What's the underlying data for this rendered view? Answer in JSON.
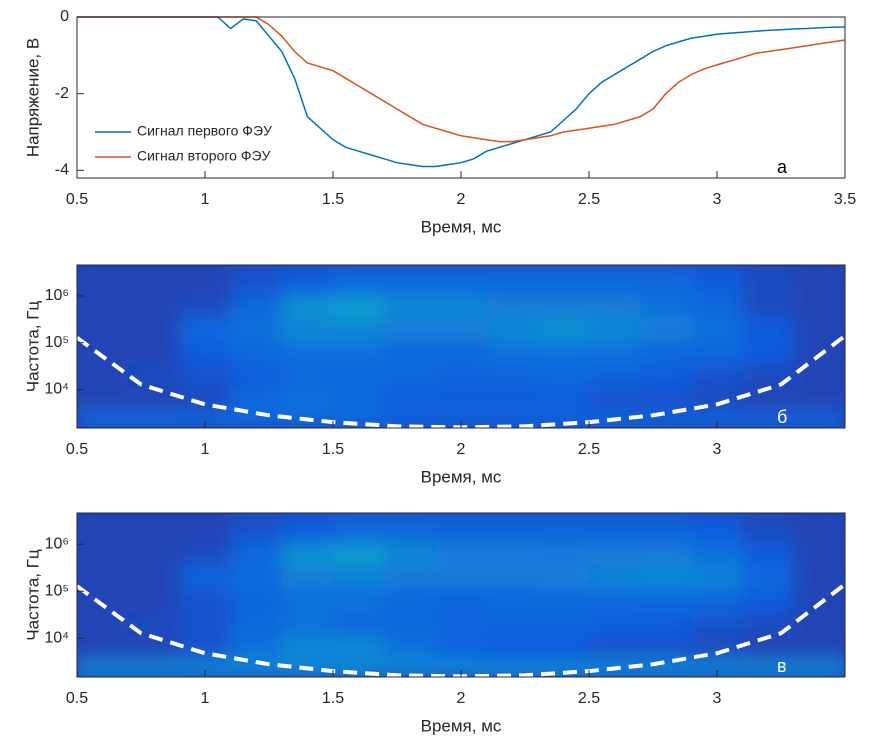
{
  "chart_data": [
    {
      "type": "line",
      "xlabel": "Время, мс",
      "ylabel": "Напряжение, В",
      "annotation": "а",
      "xlim": [
        0.5,
        3.5
      ],
      "xticks": [
        0.5,
        1,
        1.5,
        2,
        2.5,
        3,
        3.5
      ],
      "ylim": [
        -4.2,
        0
      ],
      "yticks": [
        -4,
        -2,
        0
      ],
      "legend": "lower left",
      "x": [
        0.5,
        0.55,
        0.6,
        0.65,
        0.7,
        0.75,
        0.8,
        0.85,
        0.9,
        0.95,
        1,
        1.05,
        1.1,
        1.15,
        1.2,
        1.25,
        1.3,
        1.35,
        1.4,
        1.45,
        1.5,
        1.55,
        1.6,
        1.65,
        1.7,
        1.75,
        1.8,
        1.85,
        1.9,
        1.95,
        2,
        2.05,
        2.1,
        2.15,
        2.2,
        2.25,
        2.3,
        2.35,
        2.4,
        2.45,
        2.5,
        2.55,
        2.6,
        2.65,
        2.7,
        2.75,
        2.8,
        2.85,
        2.9,
        2.95,
        3,
        3.05,
        3.1,
        3.15,
        3.2,
        3.25,
        3.3,
        3.35,
        3.4,
        3.45,
        3.5
      ],
      "series": [
        {
          "name": "Сигнал первого ФЭУ",
          "color": "#0072bd",
          "values": [
            0,
            0,
            0,
            0,
            0,
            0,
            0,
            0,
            0,
            0,
            0,
            0,
            -0.3,
            -0.05,
            -0.1,
            -0.5,
            -0.9,
            -1.6,
            -2.6,
            -2.9,
            -3.2,
            -3.4,
            -3.5,
            -3.6,
            -3.7,
            -3.8,
            -3.85,
            -3.9,
            -3.9,
            -3.85,
            -3.8,
            -3.7,
            -3.5,
            -3.4,
            -3.3,
            -3.2,
            -3.1,
            -3.0,
            -2.7,
            -2.4,
            -2.0,
            -1.7,
            -1.5,
            -1.3,
            -1.1,
            -0.9,
            -0.75,
            -0.65,
            -0.55,
            -0.5,
            -0.45,
            -0.42,
            -0.4,
            -0.37,
            -0.35,
            -0.33,
            -0.31,
            -0.3,
            -0.28,
            -0.27,
            -0.26
          ]
        },
        {
          "name": "Сигнал второго ФЭУ",
          "color": "#d95319",
          "values": [
            0,
            0,
            0,
            0,
            0,
            0,
            0,
            0,
            0,
            0,
            0,
            0,
            0,
            0,
            0,
            -0.2,
            -0.5,
            -0.9,
            -1.2,
            -1.3,
            -1.4,
            -1.6,
            -1.8,
            -2.0,
            -2.2,
            -2.4,
            -2.6,
            -2.8,
            -2.9,
            -3.0,
            -3.1,
            -3.15,
            -3.2,
            -3.25,
            -3.25,
            -3.2,
            -3.15,
            -3.1,
            -3.0,
            -2.95,
            -2.9,
            -2.85,
            -2.8,
            -2.7,
            -2.6,
            -2.4,
            -2.0,
            -1.7,
            -1.5,
            -1.35,
            -1.25,
            -1.15,
            -1.05,
            -0.95,
            -0.9,
            -0.85,
            -0.8,
            -0.75,
            -0.7,
            -0.65,
            -0.6
          ]
        }
      ]
    },
    {
      "type": "heatmap",
      "xlabel": "Время, мс",
      "ylabel": "Частота, Гц",
      "annotation": "б",
      "xlim": [
        0.5,
        3.5
      ],
      "xticks": [
        0.5,
        1,
        1.5,
        2,
        2.5,
        3
      ],
      "ylim": [
        1500,
        4600000
      ],
      "log_y": true,
      "yticks": [
        {
          "value": 10000,
          "label": "10⁴"
        },
        {
          "value": 100000,
          "label": "10⁵"
        },
        {
          "value": 1000000,
          "label": "10⁶"
        }
      ],
      "x": [
        0.6,
        0.8,
        1.0,
        1.2,
        1.4,
        1.6,
        1.8,
        2.0,
        2.2,
        2.4,
        2.6,
        2.8,
        3.0,
        3.2,
        3.4
      ],
      "y": [
        2000000,
        600000,
        200000,
        60000,
        20000,
        6000,
        2000
      ],
      "z": [
        [
          0.08,
          0.08,
          0.08,
          0.12,
          0.15,
          0.2,
          0.2,
          0.2,
          0.2,
          0.2,
          0.2,
          0.2,
          0.15,
          0.1,
          0.08
        ],
        [
          0.08,
          0.08,
          0.1,
          0.2,
          0.4,
          0.45,
          0.35,
          0.35,
          0.3,
          0.3,
          0.3,
          0.25,
          0.2,
          0.1,
          0.08
        ],
        [
          0.08,
          0.08,
          0.2,
          0.25,
          0.35,
          0.35,
          0.3,
          0.3,
          0.35,
          0.4,
          0.35,
          0.3,
          0.25,
          0.15,
          0.08
        ],
        [
          0.08,
          0.08,
          0.15,
          0.2,
          0.25,
          0.25,
          0.2,
          0.2,
          0.25,
          0.25,
          0.25,
          0.2,
          0.2,
          0.15,
          0.08
        ],
        [
          0.08,
          0.1,
          0.12,
          0.15,
          0.2,
          0.2,
          0.2,
          0.18,
          0.18,
          0.2,
          0.18,
          0.15,
          0.12,
          0.1,
          0.08
        ],
        [
          0.08,
          0.08,
          0.1,
          0.2,
          0.25,
          0.2,
          0.15,
          0.15,
          0.15,
          0.15,
          0.12,
          0.12,
          0.1,
          0.08,
          0.08
        ],
        [
          0.2,
          0.2,
          0.2,
          0.2,
          0.2,
          0.2,
          0.18,
          0.18,
          0.18,
          0.18,
          0.18,
          0.18,
          0.18,
          0.18,
          0.18
        ]
      ],
      "coi": {
        "color": "#ffffff",
        "x": [
          0.5,
          0.75,
          1,
          1.25,
          1.5,
          1.75,
          2,
          2.25,
          2.5,
          2.75,
          3,
          3.25,
          3.5
        ],
        "values": [
          128000,
          12800,
          4800,
          2800,
          2000,
          1630,
          1550,
          1630,
          2000,
          2800,
          4800,
          12800,
          140000
        ]
      }
    },
    {
      "type": "heatmap",
      "xlabel": "Время, мс",
      "ylabel": "Частота, Гц",
      "annotation": "в",
      "xlim": [
        0.5,
        3.5
      ],
      "xticks": [
        0.5,
        1,
        1.5,
        2,
        2.5,
        3
      ],
      "ylim": [
        1500,
        4600000
      ],
      "log_y": true,
      "yticks": [
        {
          "value": 10000,
          "label": "10⁴"
        },
        {
          "value": 100000,
          "label": "10⁵"
        },
        {
          "value": 1000000,
          "label": "10⁶"
        }
      ],
      "x": [
        0.6,
        0.8,
        1.0,
        1.2,
        1.4,
        1.6,
        1.8,
        2.0,
        2.2,
        2.4,
        2.6,
        2.8,
        3.0,
        3.2,
        3.4
      ],
      "y": [
        2000000,
        600000,
        200000,
        60000,
        20000,
        6000,
        2000
      ],
      "z": [
        [
          0.08,
          0.08,
          0.08,
          0.12,
          0.15,
          0.2,
          0.2,
          0.18,
          0.18,
          0.18,
          0.18,
          0.18,
          0.15,
          0.1,
          0.08
        ],
        [
          0.08,
          0.08,
          0.1,
          0.2,
          0.4,
          0.45,
          0.35,
          0.3,
          0.3,
          0.28,
          0.3,
          0.3,
          0.25,
          0.15,
          0.08
        ],
        [
          0.08,
          0.08,
          0.18,
          0.22,
          0.3,
          0.32,
          0.28,
          0.28,
          0.28,
          0.3,
          0.32,
          0.35,
          0.32,
          0.2,
          0.08
        ],
        [
          0.08,
          0.08,
          0.12,
          0.18,
          0.25,
          0.25,
          0.2,
          0.18,
          0.2,
          0.2,
          0.22,
          0.22,
          0.2,
          0.15,
          0.08
        ],
        [
          0.08,
          0.1,
          0.12,
          0.2,
          0.25,
          0.22,
          0.2,
          0.18,
          0.18,
          0.18,
          0.16,
          0.15,
          0.12,
          0.1,
          0.08
        ],
        [
          0.08,
          0.08,
          0.12,
          0.25,
          0.35,
          0.35,
          0.25,
          0.18,
          0.15,
          0.15,
          0.12,
          0.12,
          0.1,
          0.08,
          0.08
        ],
        [
          0.35,
          0.35,
          0.35,
          0.35,
          0.35,
          0.35,
          0.35,
          0.35,
          0.35,
          0.35,
          0.35,
          0.35,
          0.35,
          0.35,
          0.35
        ]
      ],
      "coi": {
        "color": "#ffffff",
        "x": [
          0.5,
          0.75,
          1,
          1.25,
          1.5,
          1.75,
          2,
          2.25,
          2.5,
          2.75,
          3,
          3.25,
          3.5
        ],
        "values": [
          128000,
          12800,
          4800,
          2800,
          2000,
          1630,
          1550,
          1630,
          2000,
          2800,
          4800,
          12800,
          140000
        ]
      }
    }
  ]
}
